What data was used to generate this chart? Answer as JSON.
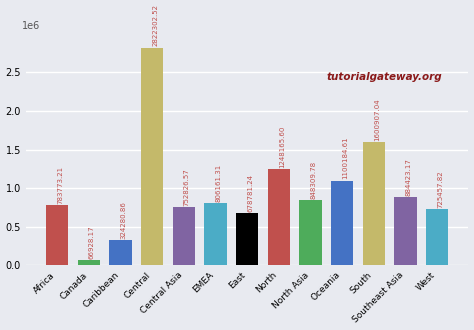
{
  "categories": [
    "Africa",
    "Canada",
    "Caribbean",
    "Central",
    "Central Asia",
    "EMEA",
    "East",
    "North",
    "North Asia",
    "Oceania",
    "South",
    "Southeast Asia",
    "West"
  ],
  "values": [
    783773.21,
    66928.17,
    324280.86,
    2822302.52,
    752826.57,
    806161.31,
    678781.24,
    1248165.6,
    848309.78,
    1100184.61,
    1600907.04,
    884423.17,
    725457.82
  ],
  "colors": [
    "#c0504d",
    "#4eac5b",
    "#4472c4",
    "#c4b96a",
    "#8064a2",
    "#4bacc6",
    "#000000",
    "#c0504d",
    "#4eac5b",
    "#4472c4",
    "#c4b96a",
    "#8064a2",
    "#4bacc6"
  ],
  "bar_value_color": "#c0504d",
  "bar_value_fontsize": 5,
  "background_color": "#e8eaf0",
  "watermark_text": "tutorialgateway.org",
  "watermark_color": "#8b1a1a",
  "watermark_fontsize": 7.5,
  "ylim": [
    0,
    3000000
  ],
  "figsize": [
    4.74,
    3.3
  ],
  "dpi": 100
}
